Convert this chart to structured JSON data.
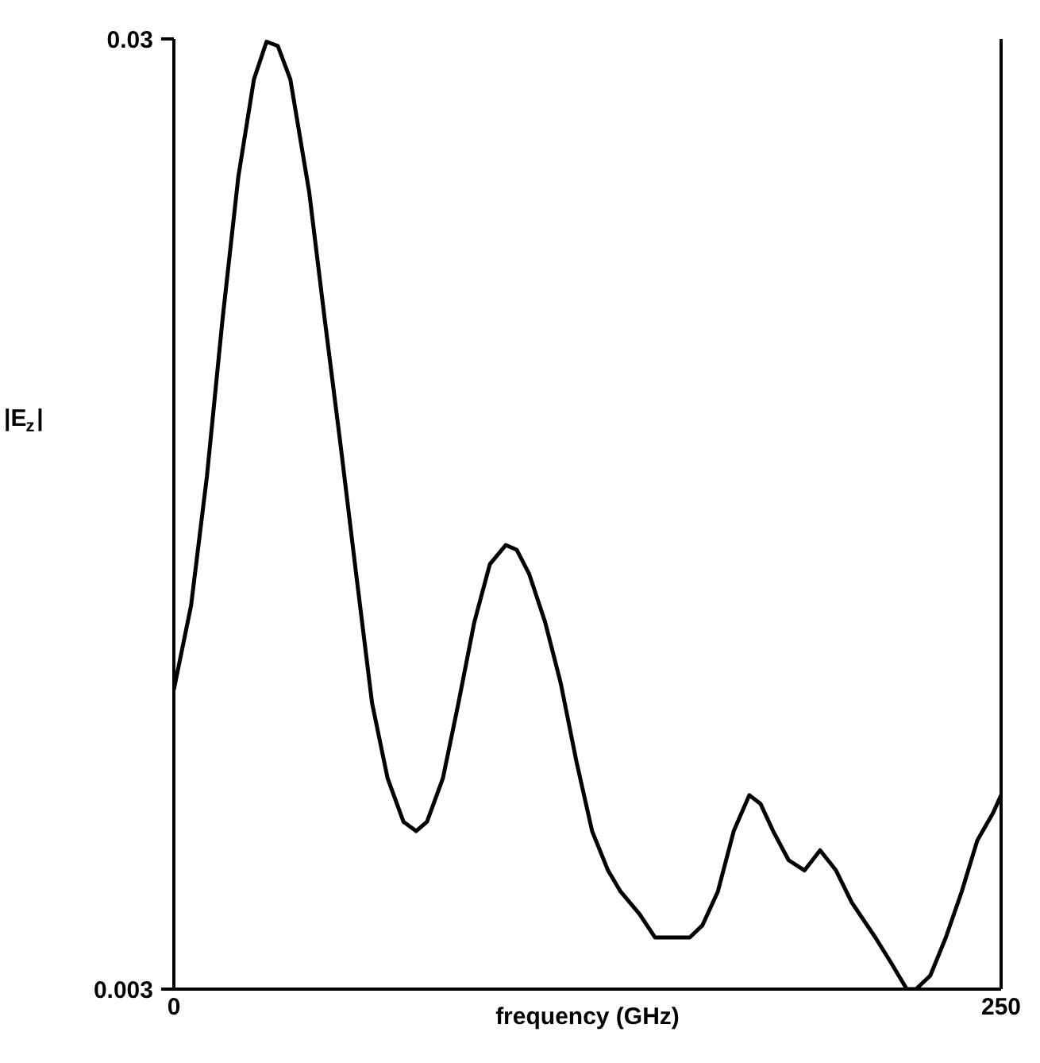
{
  "chart_data": {
    "type": "line",
    "xlabel": "frequency (GHz)",
    "ylabel": "|E$_{z}$|",
    "log": "y",
    "marker": "none",
    "line_style": "solid",
    "xlim": [
      0,
      250
    ],
    "xticks": [
      0,
      250
    ],
    "ylim": [
      0.003,
      0.03
    ],
    "yticks": [
      0.003,
      0.03
    ],
    "x": [
      0,
      5.2,
      10.0,
      14.7,
      19.5,
      24.2,
      28.0,
      31.4,
      35.2,
      40.9,
      45.6,
      50.4,
      55.1,
      59.9,
      64.6,
      69.4,
      73.2,
      76.5,
      81.3,
      86.0,
      90.8,
      95.5,
      100.3,
      103.6,
      107.4,
      112.2,
      116.9,
      121.7,
      126.4,
      131.2,
      135.0,
      140.7,
      145.4,
      150.2,
      155.9,
      159.7,
      164.4,
      169.2,
      173.9,
      177.3,
      181.1,
      185.8,
      190.6,
      195.3,
      200.1,
      204.9,
      212.0,
      216.7,
      221.5,
      224.3,
      228.6,
      233.3,
      238.1,
      242.8,
      247.6,
      250
    ],
    "series": [
      {
        "color": "#000000",
        "values": [
          0.0062,
          0.0076,
          0.0104,
          0.0152,
          0.0215,
          0.0272,
          0.0298,
          0.0295,
          0.0272,
          0.0207,
          0.0152,
          0.0112,
          0.0082,
          0.006,
          0.005,
          0.0045,
          0.0044,
          0.0045,
          0.005,
          0.006,
          0.0073,
          0.0084,
          0.0088,
          0.0087,
          0.0082,
          0.0073,
          0.0063,
          0.0052,
          0.0044,
          0.004,
          0.0038,
          0.0036,
          0.0034,
          0.0034,
          0.0034,
          0.0035,
          0.0038,
          0.0044,
          0.0048,
          0.0047,
          0.0044,
          0.0041,
          0.004,
          0.0042,
          0.004,
          0.0037,
          0.0034,
          0.0032,
          0.003,
          0.003,
          0.0031,
          0.0034,
          0.0038,
          0.0043,
          0.0046,
          0.0048
        ]
      }
    ]
  }
}
